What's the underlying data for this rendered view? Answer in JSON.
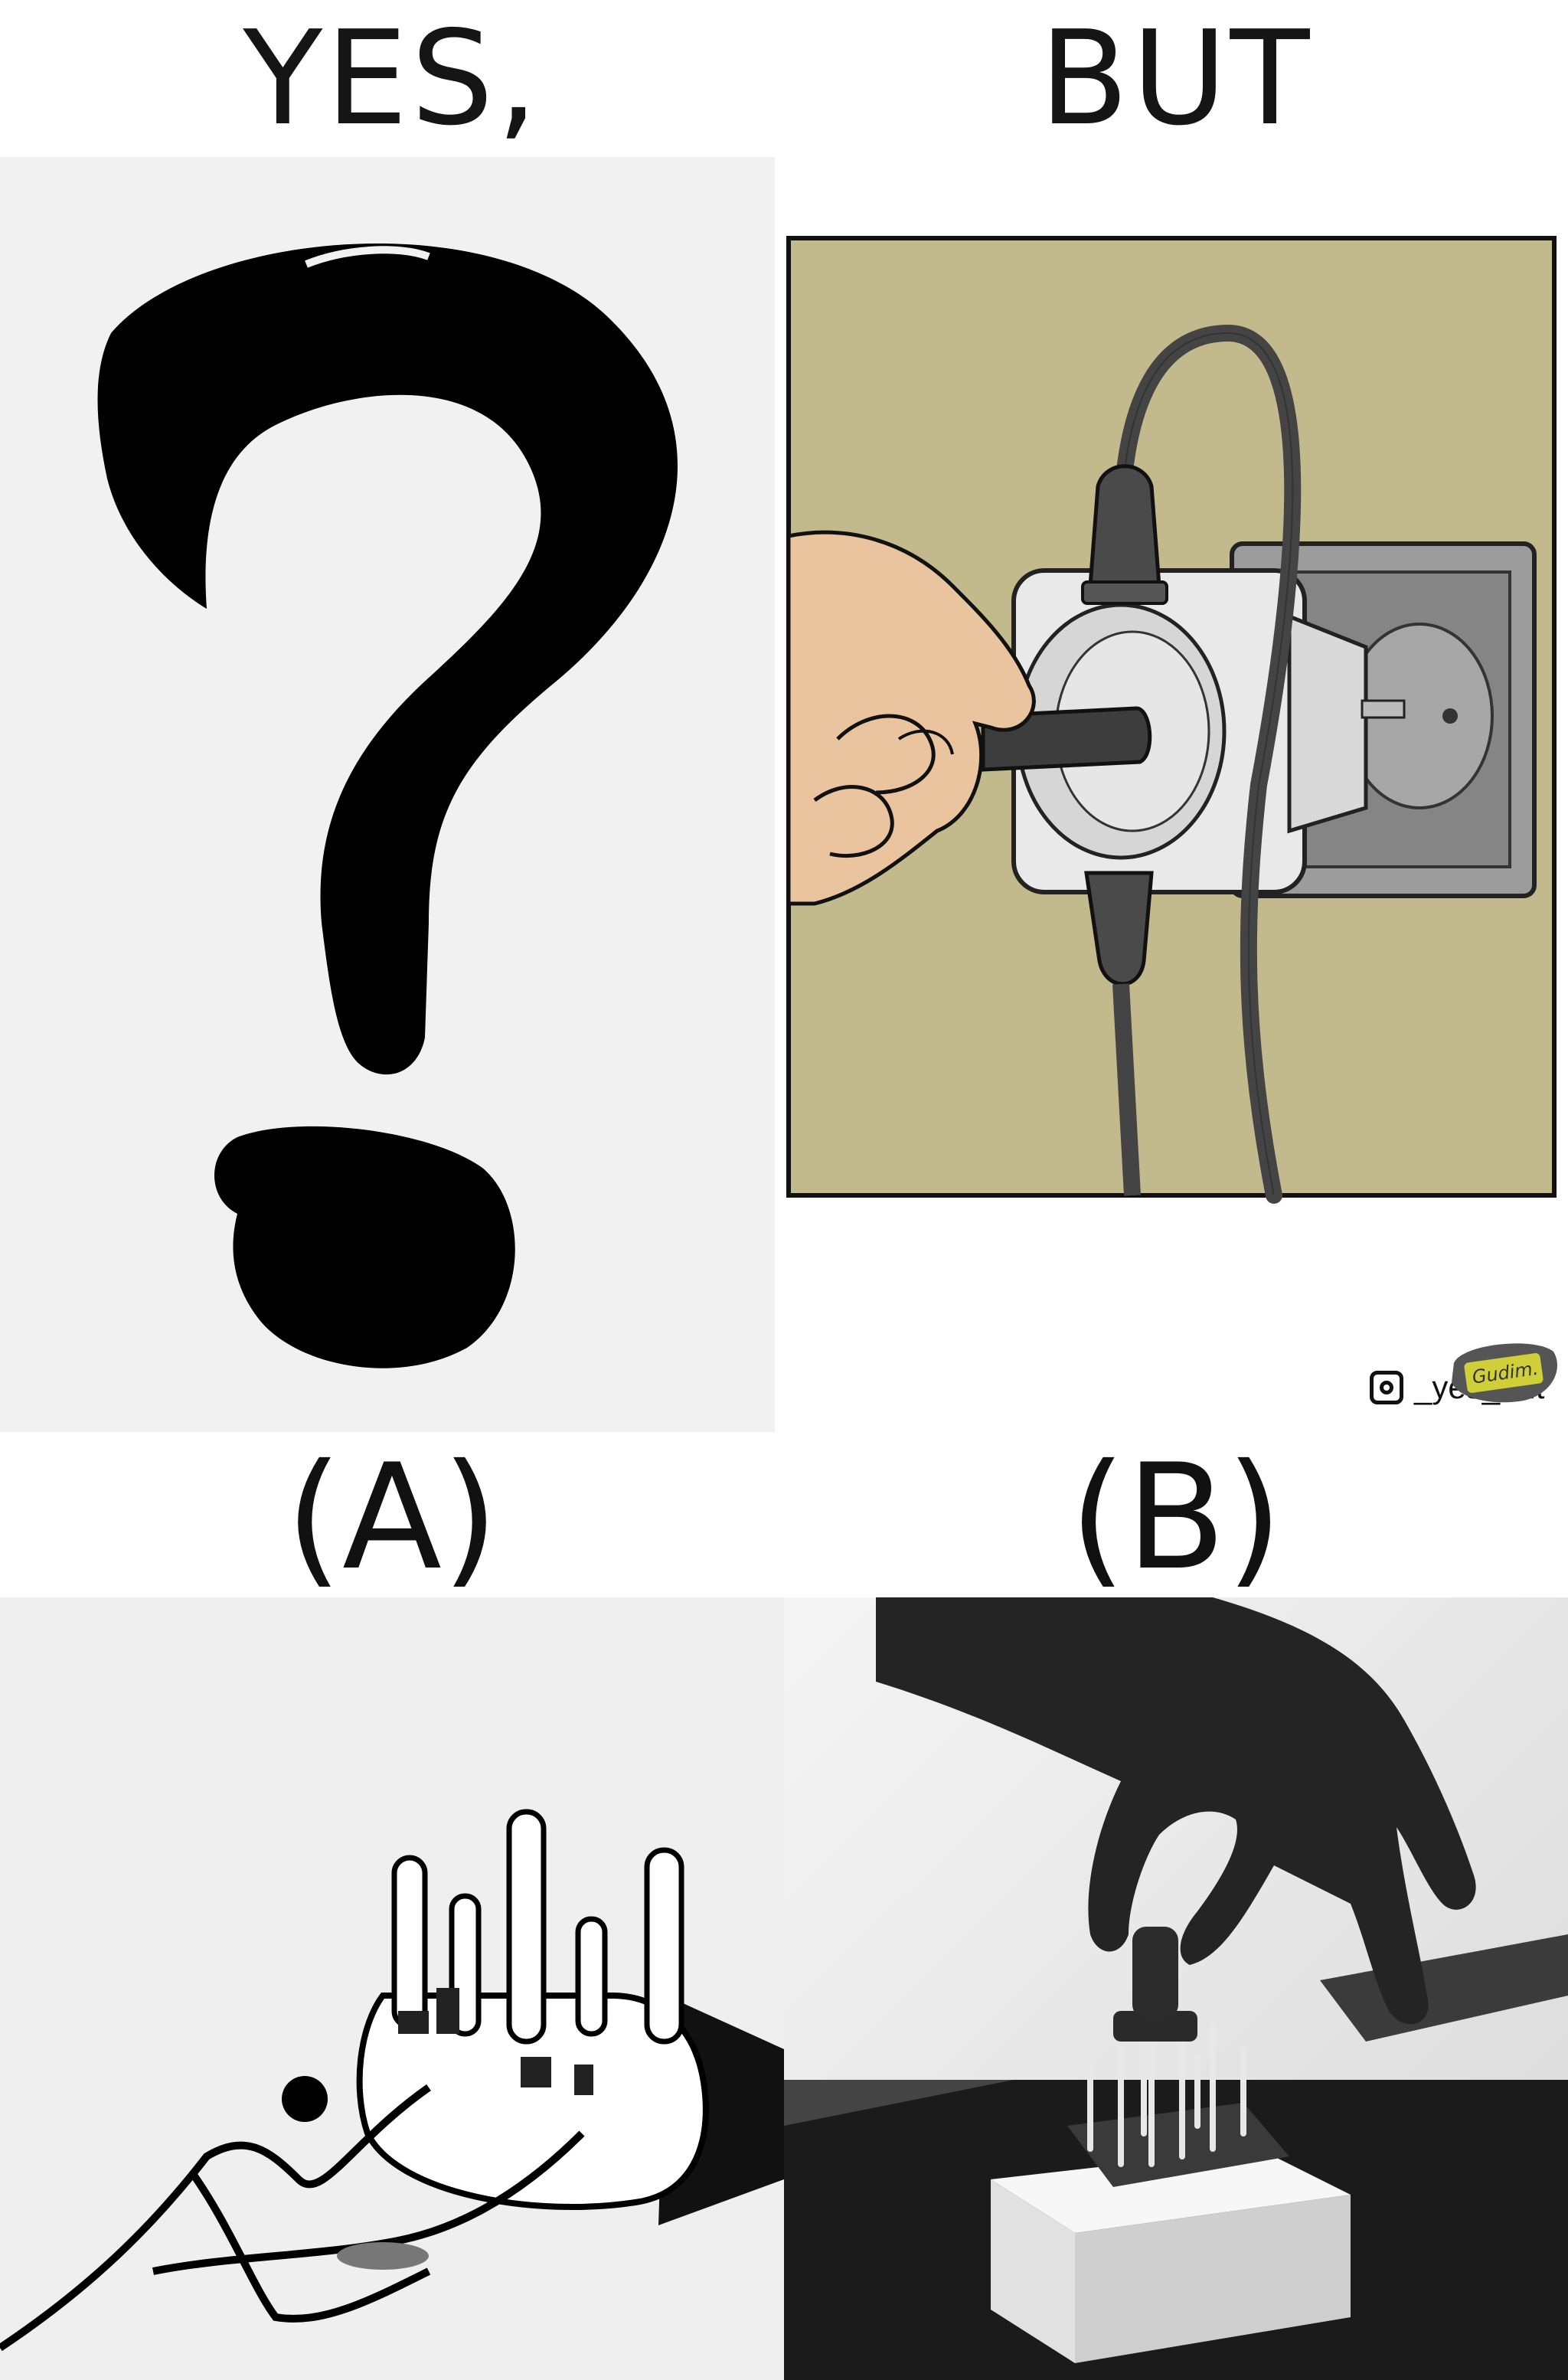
{
  "header": {
    "left": "YES,",
    "right": "BUT"
  },
  "options": {
    "a": "(A)",
    "b": "(B)"
  },
  "comic": {
    "handle": "_yes_but",
    "signature": "Gudim."
  },
  "colors": {
    "wall": "#c2b98d",
    "skin": "#e9c49e",
    "adapter": "#e9e9e9",
    "socket_plate": "#8c8c8c"
  }
}
